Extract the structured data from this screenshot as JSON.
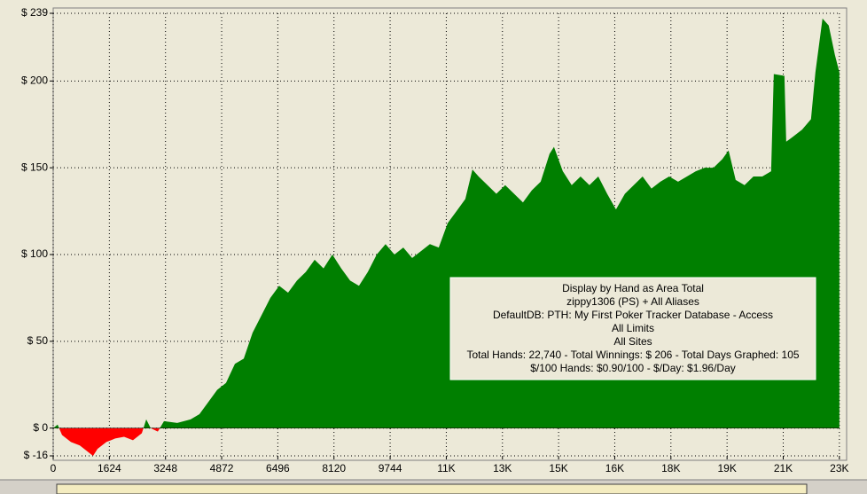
{
  "chart_data": {
    "type": "area",
    "annotation": [
      "Display by Hand as Area Total",
      "zippy1306 (PS) + All Aliases",
      "DefaultDB: PTH: My First Poker Tracker Database - Access",
      "All Limits",
      "All Sites",
      "Total Hands: 22,740 - Total Winnings: $ 206 - Total Days Graphed: 105",
      "$/100 Hands: $0.90/100 - $/Day: $1.96/Day"
    ],
    "x": [
      0,
      128,
      256,
      513,
      769,
      1025,
      1153,
      1282,
      1538,
      1794,
      2050,
      2307,
      2563,
      2691,
      2819,
      3025,
      3204,
      3588,
      3973,
      4229,
      4485,
      4742,
      4998,
      5255,
      5511,
      5767,
      6024,
      6280,
      6536,
      6792,
      7049,
      7305,
      7561,
      7818,
      8074,
      8330,
      8587,
      8843,
      9099,
      9356,
      9612,
      9868,
      10125,
      10381,
      10637,
      10894,
      11150,
      11406,
      11663,
      11919,
      12124,
      12303,
      12560,
      12816,
      13072,
      13329,
      13585,
      13841,
      14098,
      14354,
      14482,
      14738,
      14995,
      15251,
      15507,
      15764,
      16020,
      16276,
      16533,
      16789,
      17045,
      17302,
      17558,
      17814,
      18071,
      18327,
      18583,
      18840,
      19096,
      19352,
      19532,
      19737,
      19993,
      20250,
      20506,
      20762,
      20839,
      21147,
      21198,
      21403,
      21659,
      21915,
      22043,
      22248,
      22428,
      22607,
      22736
    ],
    "series": [
      {
        "color": "#007f00",
        "negative_color": "#ff0000",
        "values": [
          0,
          2,
          -4,
          -8,
          -10,
          -14,
          -16,
          -12,
          -8,
          -6,
          -5,
          -7,
          -3,
          5,
          0,
          -2,
          4,
          3,
          5,
          8,
          15,
          22,
          26,
          37,
          40,
          55,
          65,
          75,
          82,
          78,
          85,
          90,
          97,
          92,
          100,
          92,
          85,
          82,
          90,
          100,
          106,
          100,
          104,
          98,
          102,
          106,
          104,
          118,
          125,
          132,
          149,
          145,
          140,
          135,
          140,
          135,
          130,
          137,
          142,
          158,
          162,
          148,
          140,
          145,
          140,
          145,
          135,
          126,
          135,
          140,
          145,
          138,
          142,
          145,
          142,
          145,
          148,
          150,
          150,
          155,
          160,
          143,
          140,
          145,
          145,
          148,
          204,
          203,
          165,
          168,
          172,
          178,
          205,
          236,
          232,
          215,
          205
        ]
      }
    ],
    "xlim": [
      0,
      22740
    ],
    "ylim": [
      -16,
      239
    ],
    "xticks": [
      0,
      1624,
      3248,
      4872,
      6496,
      8120,
      9744,
      {
        "value": 11368,
        "label": "11K"
      },
      {
        "value": 12992,
        "label": "13K"
      },
      {
        "value": 14616,
        "label": "15K"
      },
      {
        "value": 16240,
        "label": "16K"
      },
      {
        "value": 17864,
        "label": "18K"
      },
      {
        "value": 19488,
        "label": "19K"
      },
      {
        "value": 21112,
        "label": "21K"
      },
      {
        "value": 22736,
        "label": "23K"
      }
    ],
    "yticks": [
      {
        "value": -16,
        "label": "$ -16"
      },
      {
        "value": 0,
        "label": "$ 0"
      },
      {
        "value": 50,
        "label": "$ 50"
      },
      {
        "value": 100,
        "label": "$ 100"
      },
      {
        "value": 150,
        "label": "$ 150"
      },
      {
        "value": 200,
        "label": "$ 200"
      },
      {
        "value": 239,
        "label": "$ 239"
      }
    ],
    "grid": true
  }
}
